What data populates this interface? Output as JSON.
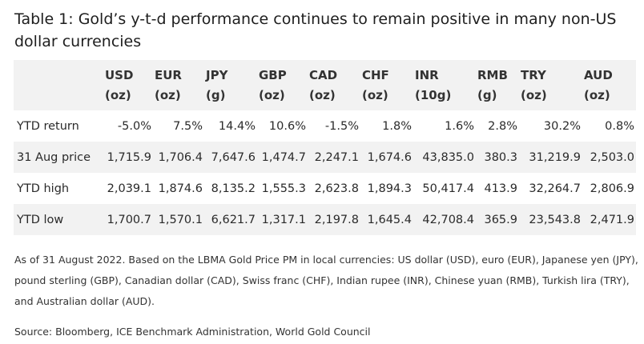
{
  "title": "Table 1: Gold’s y-t-d performance continues to remain positive in many non-US dollar currencies",
  "table": {
    "columns": [
      {
        "code": "USD",
        "unit": "(oz)"
      },
      {
        "code": "EUR",
        "unit": "(oz)"
      },
      {
        "code": "JPY",
        "unit": "(g)"
      },
      {
        "code": "GBP",
        "unit": "(oz)"
      },
      {
        "code": "CAD",
        "unit": "(oz)"
      },
      {
        "code": "CHF",
        "unit": "(oz)"
      },
      {
        "code": "INR",
        "unit": "(10g)"
      },
      {
        "code": "RMB",
        "unit": "(g)"
      },
      {
        "code": "TRY",
        "unit": "(oz)"
      },
      {
        "code": "AUD",
        "unit": "(oz)"
      }
    ],
    "rows": [
      {
        "label": "YTD return",
        "values": [
          "-5.0%",
          "7.5%",
          "14.4%",
          "10.6%",
          "-1.5%",
          "1.8%",
          "1.6%",
          "2.8%",
          "30.2%",
          "0.8%"
        ]
      },
      {
        "label": "31 Aug price",
        "values": [
          "1,715.9",
          "1,706.4",
          "7,647.6",
          "1,474.7",
          "2,247.1",
          "1,674.6",
          "43,835.0",
          "380.3",
          "31,219.9",
          "2,503.0"
        ]
      },
      {
        "label": "YTD high",
        "values": [
          "2,039.1",
          "1,874.6",
          "8,135.2",
          "1,555.3",
          "2,623.8",
          "1,894.3",
          "50,417.4",
          "413.9",
          "32,264.7",
          "2,806.9"
        ]
      },
      {
        "label": "YTD low",
        "values": [
          "1,700.7",
          "1,570.1",
          "6,621.7",
          "1,317.1",
          "2,197.8",
          "1,645.4",
          "42,708.4",
          "365.9",
          "23,543.8",
          "2,471.9"
        ]
      }
    ]
  },
  "note": "As of 31 August 2022. Based on the LBMA Gold Price PM in local currencies: US dollar (USD), euro (EUR), Japanese yen (JPY), pound sterling (GBP), Canadian dollar (CAD), Swiss franc (CHF), Indian rupee (INR), Chinese yuan (RMB), Turkish lira (TRY), and Australian dollar (AUD).",
  "source": "Source: Bloomberg, ICE Benchmark Administration, World Gold Council"
}
